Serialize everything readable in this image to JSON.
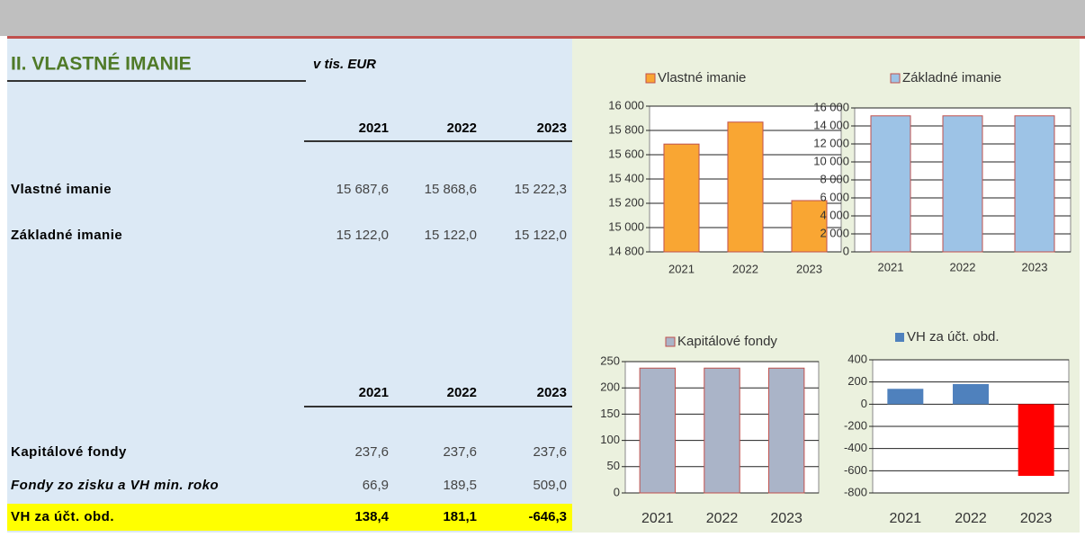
{
  "header": {
    "title": "II. VLASTNÉ IMANIE",
    "unit": "v tis. EUR"
  },
  "table1": {
    "columns": [
      "2021",
      "2022",
      "2023"
    ],
    "rows": [
      [
        "Vlastné imanie",
        "15 687,6",
        "15 868,6",
        "15 222,3"
      ],
      [
        "Základné imanie",
        "15 122,0",
        "15 122,0",
        "15 122,0"
      ]
    ]
  },
  "table2": {
    "columns": [
      "2021",
      "2022",
      "2023"
    ],
    "rows": [
      [
        "Kapitálové fondy",
        "237,6",
        "237,6",
        "237,6"
      ],
      [
        "Fondy zo zisku a VH min. roko",
        "66,9",
        "189,5",
        "509,0"
      ],
      [
        "VH za účt. obd.",
        "138,4",
        "181,1",
        "-646,3"
      ]
    ]
  },
  "chart_data": [
    {
      "type": "bar",
      "categories": [
        "2021",
        "2022",
        "2023"
      ],
      "series": [
        {
          "name": "Vlastné imanie",
          "color": "#f9a633",
          "values": [
            15687.6,
            15868.6,
            15222.3
          ]
        }
      ],
      "edgecolor": "#c0504d",
      "ylim": [
        14800,
        16000
      ],
      "yticks": [
        {
          "value": 14800,
          "label": "14 800"
        },
        {
          "value": 15000,
          "label": "15 000"
        },
        {
          "value": 15200,
          "label": "15 200"
        },
        {
          "value": 15400,
          "label": "15 400"
        },
        {
          "value": 15600,
          "label": "15 600"
        },
        {
          "value": 15800,
          "label": "15 800"
        },
        {
          "value": 16000,
          "label": "16 000"
        }
      ],
      "grid": true
    },
    {
      "type": "bar",
      "categories": [
        "2021",
        "2022",
        "2023"
      ],
      "series": [
        {
          "name": "Základné imanie",
          "color": "#9dc3e6",
          "values": [
            15122,
            15122,
            15122
          ]
        }
      ],
      "edgecolor": "#c0504d",
      "ylim": [
        0,
        16000
      ],
      "yticks": [
        0,
        {
          "value": 2000,
          "label": "2 000"
        },
        {
          "value": 4000,
          "label": "4 000"
        },
        {
          "value": 6000,
          "label": "6 000"
        },
        {
          "value": 8000,
          "label": "8 000"
        },
        {
          "value": 10000,
          "label": "10 000"
        },
        {
          "value": 12000,
          "label": "12 000"
        },
        {
          "value": 14000,
          "label": "14 000"
        },
        {
          "value": 16000,
          "label": "16 000"
        }
      ],
      "grid": true
    },
    {
      "type": "bar",
      "categories": [
        "2021",
        "2022",
        "2023"
      ],
      "series": [
        {
          "name": "Kapitálové fondy",
          "color": "#aab4c8",
          "values": [
            237.6,
            237.6,
            237.6
          ]
        }
      ],
      "edgecolor": "#c0504d",
      "ylim": [
        0,
        250
      ],
      "yticks": [
        0,
        50,
        100,
        150,
        200,
        250
      ],
      "grid": true
    },
    {
      "type": "bar",
      "categories": [
        "2021",
        "2022",
        "2023"
      ],
      "series": [
        {
          "name": "VH za účt. obd.",
          "color": "#4f81bd",
          "values": [
            138.4,
            181.1,
            -646.3
          ],
          "colors": [
            "#4f81bd",
            "#4f81bd",
            "#ff0000"
          ]
        }
      ],
      "ylim": [
        -800,
        400
      ],
      "yticks": [
        -800,
        -600,
        -400,
        -200,
        0,
        200,
        400
      ],
      "grid": true
    }
  ]
}
